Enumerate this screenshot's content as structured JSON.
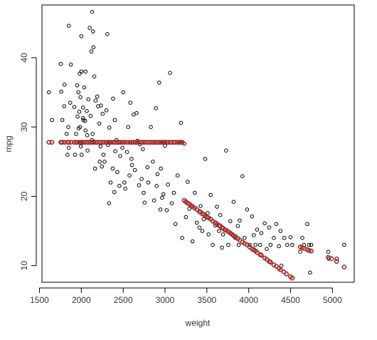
{
  "chart_data": {
    "type": "scatter",
    "xlabel": "weight",
    "ylabel": "mpg",
    "xlim": [
      1530,
      5260
    ],
    "ylim": [
      7.6,
      47.6
    ],
    "xticks": [
      1500,
      2000,
      2500,
      3000,
      3500,
      4000,
      4500,
      5000
    ],
    "yticks": [
      10,
      20,
      30,
      40
    ],
    "grid": false,
    "series": [
      {
        "color": "#000000",
        "marker": "open-circle",
        "points": [
          [
            1613,
            35
          ],
          [
            1649,
            31
          ],
          [
            1755,
            39.1
          ],
          [
            1760,
            35.1
          ],
          [
            1773,
            31
          ],
          [
            1795,
            33
          ],
          [
            1800,
            36.1
          ],
          [
            1825,
            29
          ],
          [
            1835,
            26
          ],
          [
            1845,
            30
          ],
          [
            1850,
            44.6
          ],
          [
            1850,
            27
          ],
          [
            1867,
            33.5
          ],
          [
            1875,
            39
          ],
          [
            1915,
            32.9
          ],
          [
            1925,
            26
          ],
          [
            1937,
            29
          ],
          [
            1950,
            36
          ],
          [
            1955,
            31.5
          ],
          [
            1965,
            35
          ],
          [
            1968,
            29.8
          ],
          [
            1975,
            32.2
          ],
          [
            1980,
            37.7
          ],
          [
            1985,
            30
          ],
          [
            1990,
            34.3
          ],
          [
            1995,
            27.2
          ],
          [
            2000,
            38
          ],
          [
            2000,
            43.1
          ],
          [
            2003,
            26
          ],
          [
            2019,
            31.3
          ],
          [
            2020,
            32.8
          ],
          [
            2025,
            31
          ],
          [
            2035,
            35.7
          ],
          [
            2045,
            30.9
          ],
          [
            2050,
            29.5
          ],
          [
            2050,
            38
          ],
          [
            2065,
            32.3
          ],
          [
            2070,
            28.8
          ],
          [
            2075,
            26.6
          ],
          [
            2085,
            34
          ],
          [
            2100,
            44.3
          ],
          [
            2110,
            31.6
          ],
          [
            2120,
            40.9
          ],
          [
            2125,
            28.1
          ],
          [
            2130,
            46.6
          ],
          [
            2135,
            29
          ],
          [
            2140,
            43.8
          ],
          [
            2145,
            41.5
          ],
          [
            2150,
            27.9
          ],
          [
            2155,
            37.3
          ],
          [
            2164,
            24
          ],
          [
            2170,
            33.8
          ],
          [
            2190,
            34.4
          ],
          [
            2200,
            33
          ],
          [
            2215,
            30.5
          ],
          [
            2220,
            25
          ],
          [
            2230,
            27.2
          ],
          [
            2234,
            33.1
          ],
          [
            2245,
            24.3
          ],
          [
            2255,
            31.9
          ],
          [
            2265,
            26
          ],
          [
            2278,
            25
          ],
          [
            2300,
            32.4
          ],
          [
            2310,
            43.4
          ],
          [
            2320,
            27.4
          ],
          [
            2330,
            19
          ],
          [
            2335,
            29.9
          ],
          [
            2350,
            22
          ],
          [
            2375,
            24
          ],
          [
            2380,
            34.1
          ],
          [
            2395,
            20.6
          ],
          [
            2400,
            31
          ],
          [
            2405,
            26.5
          ],
          [
            2420,
            28.1
          ],
          [
            2430,
            23.5
          ],
          [
            2455,
            21.5
          ],
          [
            2465,
            25.8
          ],
          [
            2490,
            27
          ],
          [
            2500,
            35
          ],
          [
            2515,
            22
          ],
          [
            2525,
            21.1
          ],
          [
            2545,
            26.4
          ],
          [
            2560,
            30
          ],
          [
            2575,
            23
          ],
          [
            2585,
            33.5
          ],
          [
            2600,
            25.4
          ],
          [
            2605,
            24.5
          ],
          [
            2625,
            31.8
          ],
          [
            2640,
            23.8
          ],
          [
            2660,
            32
          ],
          [
            2670,
            28
          ],
          [
            2690,
            21.6
          ],
          [
            2700,
            27.5
          ],
          [
            2720,
            22.5
          ],
          [
            2735,
            26.8
          ],
          [
            2745,
            20.5
          ],
          [
            2755,
            19.1
          ],
          [
            2790,
            24.2
          ],
          [
            2800,
            22
          ],
          [
            2830,
            30
          ],
          [
            2855,
            25
          ],
          [
            2870,
            19.4
          ],
          [
            2890,
            32.7
          ],
          [
            2900,
            21.5
          ],
          [
            2910,
            23.2
          ],
          [
            2930,
            36.4
          ],
          [
            2945,
            18.1
          ],
          [
            2950,
            24
          ],
          [
            2965,
            19.8
          ],
          [
            2980,
            20.3
          ],
          [
            3000,
            27.3
          ],
          [
            3020,
            18
          ],
          [
            3035,
            21.7
          ],
          [
            3060,
            37.8
          ],
          [
            3080,
            19
          ],
          [
            3105,
            20.5
          ],
          [
            3125,
            16
          ],
          [
            3150,
            23
          ],
          [
            3190,
            30.6
          ],
          [
            3205,
            14
          ],
          [
            3230,
            27.6
          ],
          [
            3250,
            17
          ],
          [
            3270,
            22.1
          ],
          [
            3290,
            18.2
          ],
          [
            3329,
            13.5
          ],
          [
            3355,
            20.5
          ],
          [
            3380,
            16.2
          ],
          [
            3410,
            15.5
          ],
          [
            3425,
            18.6
          ],
          [
            3445,
            15
          ],
          [
            3460,
            16.7
          ],
          [
            3480,
            25.4
          ],
          [
            3510,
            17.6
          ],
          [
            3520,
            14.5
          ],
          [
            3545,
            20.2
          ],
          [
            3570,
            13
          ],
          [
            3600,
            15.8
          ],
          [
            3620,
            18.5
          ],
          [
            3645,
            15
          ],
          [
            3660,
            17.3
          ],
          [
            3680,
            12.6
          ],
          [
            3693,
            14.5
          ],
          [
            3730,
            26.6
          ],
          [
            3755,
            13
          ],
          [
            3780,
            16.4
          ],
          [
            3820,
            19.2
          ],
          [
            3840,
            14
          ],
          [
            3870,
            15.7
          ],
          [
            3880,
            13
          ],
          [
            3892,
            16.5
          ],
          [
            3925,
            22.9
          ],
          [
            3950,
            14
          ],
          [
            3980,
            18.1
          ],
          [
            4010,
            13
          ],
          [
            4040,
            17.1
          ],
          [
            4060,
            14.4
          ],
          [
            4080,
            13
          ],
          [
            4100,
            15.2
          ],
          [
            4135,
            13
          ],
          [
            4150,
            14.7
          ],
          [
            4190,
            16.1
          ],
          [
            4215,
            12.4
          ],
          [
            4245,
            15.5
          ],
          [
            4260,
            13
          ],
          [
            4300,
            14
          ],
          [
            4330,
            16
          ],
          [
            4360,
            12.8
          ],
          [
            4380,
            15
          ],
          [
            4390,
            10
          ],
          [
            4425,
            14
          ],
          [
            4460,
            13
          ],
          [
            4499,
            14.1
          ],
          [
            4520,
            13
          ],
          [
            4615,
            12
          ],
          [
            4640,
            14
          ],
          [
            4660,
            13
          ],
          [
            4700,
            16
          ],
          [
            4720,
            13
          ],
          [
            4732,
            9
          ],
          [
            4746,
            13
          ],
          [
            4950,
            12
          ],
          [
            4955,
            11
          ],
          [
            5050,
            11
          ],
          [
            5140,
            13
          ]
        ]
      },
      {
        "color": "#a52a2a",
        "marker": "open-circle",
        "points": [
          [
            1613,
            27.8
          ],
          [
            1649,
            27.8
          ],
          [
            1755,
            27.8
          ],
          [
            1773,
            27.8
          ],
          [
            1800,
            27.8
          ],
          [
            1835,
            27.8
          ],
          [
            1850,
            27.8
          ],
          [
            1875,
            27.8
          ],
          [
            1915,
            27.8
          ],
          [
            1937,
            27.8
          ],
          [
            1955,
            27.8
          ],
          [
            1975,
            27.8
          ],
          [
            1990,
            27.8
          ],
          [
            2003,
            27.8
          ],
          [
            2025,
            27.8
          ],
          [
            2050,
            27.8
          ],
          [
            2070,
            27.8
          ],
          [
            2090,
            27.8
          ],
          [
            2110,
            27.8
          ],
          [
            2130,
            27.8
          ],
          [
            2150,
            27.8
          ],
          [
            2170,
            27.8
          ],
          [
            2190,
            27.8
          ],
          [
            2215,
            27.8
          ],
          [
            2234,
            27.8
          ],
          [
            2255,
            27.8
          ],
          [
            2278,
            27.8
          ],
          [
            2300,
            27.8
          ],
          [
            2320,
            27.8
          ],
          [
            2335,
            27.8
          ],
          [
            2350,
            27.8
          ],
          [
            2380,
            27.8
          ],
          [
            2400,
            27.8
          ],
          [
            2420,
            27.8
          ],
          [
            2440,
            27.8
          ],
          [
            2465,
            27.8
          ],
          [
            2490,
            27.8
          ],
          [
            2515,
            27.8
          ],
          [
            2545,
            27.8
          ],
          [
            2575,
            27.8
          ],
          [
            2600,
            27.8
          ],
          [
            2625,
            27.8
          ],
          [
            2650,
            27.8
          ],
          [
            2670,
            27.8
          ],
          [
            2700,
            27.8
          ],
          [
            2720,
            27.8
          ],
          [
            2745,
            27.8
          ],
          [
            2770,
            27.8
          ],
          [
            2790,
            27.8
          ],
          [
            2810,
            27.8
          ],
          [
            2830,
            27.8
          ],
          [
            2855,
            27.8
          ],
          [
            2870,
            27.8
          ],
          [
            2890,
            27.8
          ],
          [
            2910,
            27.8
          ],
          [
            2930,
            27.8
          ],
          [
            2950,
            27.8
          ],
          [
            2965,
            27.8
          ],
          [
            2980,
            27.8
          ],
          [
            3000,
            27.8
          ],
          [
            3020,
            27.8
          ],
          [
            3035,
            27.8
          ],
          [
            3060,
            27.8
          ],
          [
            3080,
            27.8
          ],
          [
            3105,
            27.8
          ],
          [
            3125,
            27.8
          ],
          [
            3150,
            27.8
          ],
          [
            3175,
            27.8
          ],
          [
            3190,
            27.8
          ],
          [
            3205,
            27.8
          ],
          [
            3230,
            19.4
          ],
          [
            3250,
            19.2
          ],
          [
            3270,
            19.0
          ],
          [
            3290,
            18.9
          ],
          [
            3310,
            18.7
          ],
          [
            3329,
            18.5
          ],
          [
            3355,
            18.3
          ],
          [
            3380,
            18.1
          ],
          [
            3410,
            17.8
          ],
          [
            3425,
            17.7
          ],
          [
            3445,
            17.5
          ],
          [
            3460,
            17.4
          ],
          [
            3480,
            17.2
          ],
          [
            3500,
            17.0
          ],
          [
            3520,
            16.9
          ],
          [
            3545,
            16.7
          ],
          [
            3570,
            16.4
          ],
          [
            3600,
            16.2
          ],
          [
            3620,
            16.0
          ],
          [
            3645,
            15.8
          ],
          [
            3660,
            15.7
          ],
          [
            3680,
            15.5
          ],
          [
            3693,
            15.4
          ],
          [
            3710,
            15.2
          ],
          [
            3730,
            15.1
          ],
          [
            3755,
            14.9
          ],
          [
            3780,
            14.7
          ],
          [
            3800,
            14.5
          ],
          [
            3820,
            14.3
          ],
          [
            3840,
            14.2
          ],
          [
            3870,
            13.9
          ],
          [
            3892,
            13.7
          ],
          [
            3925,
            13.4
          ],
          [
            3950,
            13.2
          ],
          [
            3980,
            13.0
          ],
          [
            4010,
            12.7
          ],
          [
            4040,
            12.4
          ],
          [
            4060,
            12.3
          ],
          [
            4080,
            12.1
          ],
          [
            4100,
            11.9
          ],
          [
            4135,
            11.6
          ],
          [
            4150,
            11.5
          ],
          [
            4190,
            11.1
          ],
          [
            4215,
            10.9
          ],
          [
            4245,
            10.6
          ],
          [
            4260,
            10.5
          ],
          [
            4300,
            10.1
          ],
          [
            4330,
            9.9
          ],
          [
            4360,
            9.6
          ],
          [
            4380,
            9.4
          ],
          [
            4420,
            9.1
          ],
          [
            4450,
            8.8
          ],
          [
            4499,
            8.4
          ],
          [
            4520,
            8.2
          ],
          [
            4615,
            12.7
          ],
          [
            4640,
            12.6
          ],
          [
            4660,
            12.5
          ],
          [
            4700,
            12.3
          ],
          [
            4720,
            12.2
          ],
          [
            4746,
            12.1
          ],
          [
            4950,
            11.2
          ],
          [
            4990,
            11.0
          ],
          [
            5050,
            10.6
          ],
          [
            5140,
            9.8
          ]
        ]
      }
    ]
  }
}
